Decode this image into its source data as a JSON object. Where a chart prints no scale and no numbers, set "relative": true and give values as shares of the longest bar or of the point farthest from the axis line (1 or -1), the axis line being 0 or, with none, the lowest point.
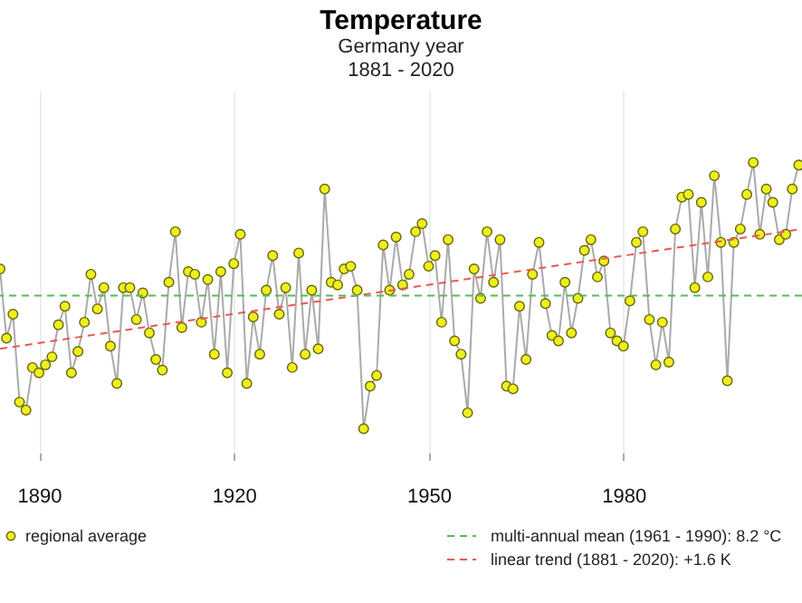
{
  "chart_data": {
    "type": "line",
    "title": "Temperature",
    "subtitle": "Germany year\n1881 - 2020",
    "relative": true,
    "marker": "circle",
    "grid": "x",
    "legend": "bottom",
    "xlim": [
      1884,
      2007.5
    ],
    "xticks": [
      1890,
      1920,
      1950,
      1980
    ],
    "series": [
      {
        "name": "regional average",
        "color": "#eeee22",
        "line_style": "solid",
        "x": [
          1884,
          1885,
          1886,
          1887,
          1888,
          1889,
          1890,
          1891,
          1892,
          1893,
          1894,
          1895,
          1896,
          1897,
          1898,
          1899,
          1900,
          1901,
          1902,
          1903,
          1904,
          1905,
          1906,
          1907,
          1908,
          1909,
          1910,
          1911,
          1912,
          1913,
          1914,
          1915,
          1916,
          1917,
          1918,
          1919,
          1920,
          1921,
          1922,
          1923,
          1924,
          1925,
          1926,
          1927,
          1928,
          1929,
          1930,
          1931,
          1932,
          1933,
          1934,
          1935,
          1936,
          1937,
          1938,
          1939,
          1940,
          1941,
          1942,
          1943,
          1944,
          1945,
          1946,
          1947,
          1948,
          1949,
          1950,
          1951,
          1952,
          1953,
          1954,
          1955,
          1956,
          1957,
          1958,
          1959,
          1960,
          1961,
          1962,
          1963,
          1964,
          1965,
          1966,
          1967,
          1968,
          1969,
          1970,
          1971,
          1972,
          1973,
          1974,
          1975,
          1976,
          1977,
          1978,
          1979,
          1980,
          1981,
          1982,
          1983,
          1984,
          1985,
          1986,
          1987,
          1988,
          1989,
          1990,
          1991,
          1992,
          1993,
          1994,
          1995,
          1996,
          1997,
          1998,
          1999,
          2000,
          2001,
          2002,
          2003,
          2004,
          2005,
          2006,
          2007
        ],
        "values": [
          0.6,
          0.34,
          0.43,
          0.1,
          0.07,
          0.23,
          0.21,
          0.24,
          0.27,
          0.39,
          0.46,
          0.21,
          0.29,
          0.4,
          0.58,
          0.45,
          0.53,
          0.31,
          0.17,
          0.53,
          0.53,
          0.41,
          0.51,
          0.36,
          0.26,
          0.22,
          0.55,
          0.74,
          0.38,
          0.59,
          0.58,
          0.4,
          0.56,
          0.28,
          0.59,
          0.21,
          0.62,
          0.73,
          0.17,
          0.42,
          0.28,
          0.52,
          0.65,
          0.43,
          0.53,
          0.23,
          0.66,
          0.28,
          0.52,
          0.3,
          0.9,
          0.55,
          0.54,
          0.6,
          0.61,
          0.52,
          0,
          0.16,
          0.2,
          0.69,
          0.52,
          0.72,
          0.54,
          0.58,
          0.74,
          0.77,
          0.61,
          0.65,
          0.4,
          0.71,
          0.33,
          0.28,
          0.06,
          0.6,
          0.49,
          0.74,
          0.55,
          0.71,
          0.16,
          0.15,
          0.46,
          0.26,
          0.58,
          0.7,
          0.47,
          0.35,
          0.33,
          0.55,
          0.36,
          0.49,
          0.67,
          0.71,
          0.57,
          0.63,
          0.36,
          0.33,
          0.31,
          0.48,
          0.7,
          0.74,
          0.41,
          0.24,
          0.4,
          0.25,
          0.75,
          0.87,
          0.88,
          0.53,
          0.85,
          0.57,
          0.95,
          0.7,
          0.18,
          0.7,
          0.75,
          0.88,
          1,
          0.73,
          0.9,
          0.85,
          0.71,
          0.73,
          0.9,
          0.99
        ]
      },
      {
        "name": "linear trend (1881 - 2020): +1.6 K",
        "type": "line",
        "color": "#ee5555",
        "line_style": "dashed",
        "marker": "none",
        "x": [
          1884,
          2007.5
        ],
        "values": [
          0.3,
          0.75
        ]
      }
    ],
    "ref_lines": [
      {
        "axis": "y",
        "value": 0.5,
        "color": "#55bb55",
        "line_style": "dashed"
      }
    ],
    "annotations": [
      "multi-annual mean (1961 - 1990): 8.2 °C"
    ]
  }
}
